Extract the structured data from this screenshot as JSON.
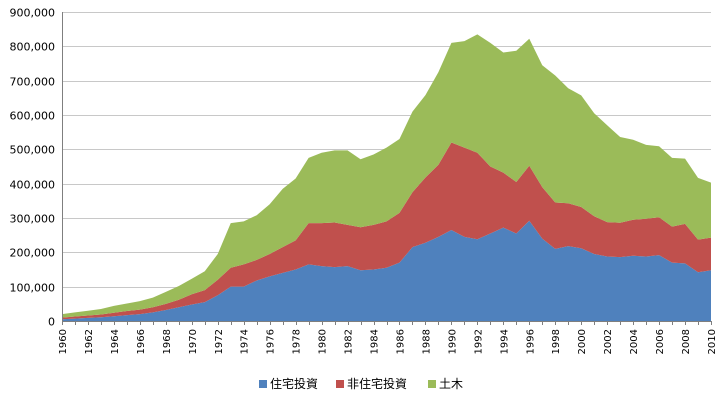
{
  "chart_data": {
    "type": "area",
    "stacked": true,
    "x": [
      1960,
      1961,
      1962,
      1963,
      1964,
      1965,
      1966,
      1967,
      1968,
      1969,
      1970,
      1971,
      1972,
      1973,
      1974,
      1975,
      1976,
      1977,
      1978,
      1979,
      1980,
      1981,
      1982,
      1983,
      1984,
      1985,
      1986,
      1987,
      1988,
      1989,
      1990,
      1991,
      1992,
      1993,
      1994,
      1995,
      1996,
      1997,
      1998,
      1999,
      2000,
      2001,
      2002,
      2003,
      2004,
      2005,
      2006,
      2007,
      2008,
      2009,
      2010
    ],
    "x_tick_labels": [
      "1960",
      "1962",
      "1964",
      "1966",
      "1968",
      "1970",
      "1972",
      "1974",
      "1976",
      "1978",
      "1980",
      "1982",
      "1984",
      "1986",
      "1988",
      "1990",
      "1992",
      "1994",
      "1996",
      "1998",
      "2000",
      "2002",
      "2004",
      "2006",
      "2008",
      "2010"
    ],
    "y_tick_labels": [
      "0",
      "100,000",
      "200,000",
      "300,000",
      "400,000",
      "500,000",
      "600,000",
      "700,000",
      "800,000",
      "900,000"
    ],
    "ylim": [
      0,
      900000
    ],
    "grid": true,
    "legend_position": "bottom",
    "title": "",
    "xlabel": "",
    "ylabel": "",
    "series": [
      {
        "name": "住宅投資",
        "color": "#4f81bd",
        "values": [
          5000,
          7000,
          9000,
          11000,
          14000,
          17000,
          20000,
          25000,
          32000,
          40000,
          48000,
          55000,
          75000,
          100000,
          100000,
          118000,
          130000,
          140000,
          150000,
          165000,
          160000,
          157000,
          160000,
          148000,
          150000,
          155000,
          170000,
          215000,
          228000,
          245000,
          265000,
          245000,
          238000,
          255000,
          272000,
          255000,
          292000,
          240000,
          210000,
          218000,
          212000,
          195000,
          188000,
          186000,
          190000,
          188000,
          192000,
          170000,
          168000,
          142000,
          148000
        ]
      },
      {
        "name": "非住宅投資",
        "color": "#c0504d",
        "values": [
          5000,
          6000,
          7000,
          8000,
          10000,
          12000,
          13000,
          15000,
          18000,
          22000,
          30000,
          35000,
          45000,
          55000,
          65000,
          60000,
          65000,
          75000,
          85000,
          120000,
          125000,
          130000,
          120000,
          125000,
          130000,
          135000,
          145000,
          160000,
          190000,
          210000,
          255000,
          260000,
          252000,
          195000,
          160000,
          150000,
          160000,
          150000,
          135000,
          125000,
          120000,
          110000,
          100000,
          100000,
          105000,
          110000,
          110000,
          105000,
          115000,
          95000,
          95000
        ]
      },
      {
        "name": "土木",
        "color": "#9bbb59",
        "values": [
          10000,
          12000,
          14000,
          16000,
          20000,
          22000,
          25000,
          28000,
          35000,
          40000,
          45000,
          55000,
          75000,
          130000,
          125000,
          130000,
          145000,
          170000,
          180000,
          190000,
          205000,
          210000,
          217000,
          198000,
          205000,
          215000,
          215000,
          235000,
          240000,
          270000,
          290000,
          310000,
          345000,
          360000,
          350000,
          382000,
          370000,
          355000,
          370000,
          335000,
          325000,
          300000,
          282000,
          250000,
          233000,
          215000,
          207000,
          200000,
          190000,
          180000,
          160000
        ]
      }
    ]
  }
}
